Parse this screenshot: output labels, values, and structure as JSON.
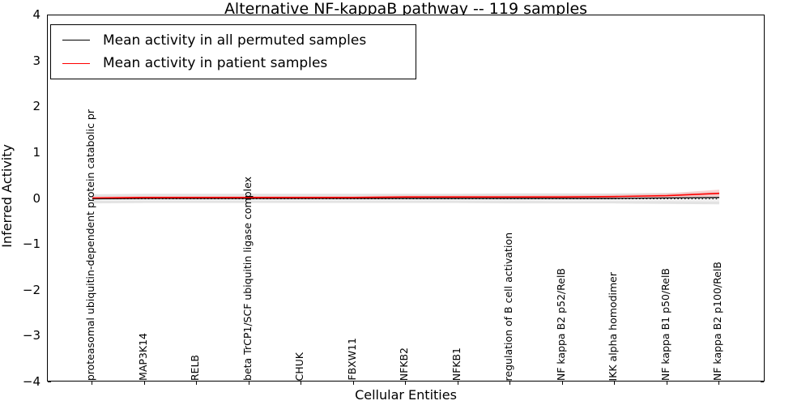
{
  "title": "Alternative NF-kappaB pathway -- 119 samples",
  "axes": {
    "ylabel": "Inferred Activity",
    "xlabel": "Cellular Entities",
    "yticks": [
      "4",
      "3",
      "2",
      "1",
      "0",
      "−1",
      "−2",
      "−3",
      "−4"
    ],
    "ytick_values": [
      4,
      3,
      2,
      1,
      0,
      -1,
      -2,
      -3,
      -4
    ],
    "ylim": [
      -4,
      4
    ]
  },
  "legend": {
    "items": [
      {
        "label": "Mean activity in all permuted samples",
        "color": "#000000"
      },
      {
        "label": "Mean activity in patient samples",
        "color": "#ff0000"
      }
    ]
  },
  "chart_data": {
    "type": "line",
    "title": "Alternative NF-kappaB pathway -- 119 samples",
    "xlabel": "Cellular Entities",
    "ylabel": "Inferred Activity",
    "ylim": [
      -4,
      4
    ],
    "grid": false,
    "legend_position": "upper left",
    "categories": [
      "proteasomal ubiquitin-dependent protein catabolic pr",
      "MAP3K14",
      "RELB",
      "beta TrCP1/SCF ubiquitin ligase complex",
      "CHUK",
      "FBXW11",
      "NFKB2",
      "NFKB1",
      "regulation of B cell activation",
      "NF kappa B2 p52/RelB",
      "IKK alpha homodimer",
      "NF kappa B1 p50/RelB",
      "NF kappa B2 p100/RelB"
    ],
    "series": [
      {
        "name": "Mean activity in all permuted samples",
        "color": "#000000",
        "width": 1.3,
        "values": [
          0.0,
          0.01,
          0.01,
          0.01,
          0.01,
          0.01,
          0.01,
          0.01,
          0.01,
          0.01,
          0.01,
          0.02,
          0.03
        ]
      },
      {
        "name": "Mean activity in patient samples",
        "color": "#ff0000",
        "width": 1.6,
        "values": [
          0.02,
          0.03,
          0.03,
          0.03,
          0.03,
          0.03,
          0.04,
          0.04,
          0.04,
          0.04,
          0.05,
          0.07,
          0.12
        ]
      }
    ],
    "bands": [
      {
        "name": "permuted-std-band",
        "color": "#e3e3e3",
        "opacity": 1,
        "upper": [
          0.1,
          0.11,
          0.11,
          0.11,
          0.11,
          0.11,
          0.11,
          0.11,
          0.12,
          0.12,
          0.12,
          0.13,
          0.15
        ],
        "lower": [
          -0.1,
          -0.09,
          -0.09,
          -0.09,
          -0.09,
          -0.09,
          -0.09,
          -0.09,
          -0.1,
          -0.1,
          -0.1,
          -0.11,
          -0.12
        ]
      },
      {
        "name": "inner-light-band",
        "color": "#f2f1f1",
        "opacity": 1,
        "upper": [
          0.04,
          0.04,
          0.04,
          0.04,
          0.04,
          0.04,
          0.04,
          0.04,
          0.04,
          0.05,
          0.05,
          0.06,
          0.08
        ],
        "lower": [
          -0.04,
          -0.04,
          -0.04,
          -0.04,
          -0.04,
          -0.04,
          -0.04,
          -0.04,
          -0.04,
          -0.05,
          -0.05,
          -0.05,
          -0.06
        ]
      },
      {
        "name": "patient-std-band",
        "color": "#f4bcbc",
        "opacity": 0.65,
        "upper": [
          0.05,
          0.06,
          0.06,
          0.06,
          0.06,
          0.06,
          0.07,
          0.07,
          0.07,
          0.08,
          0.09,
          0.12,
          0.2
        ],
        "lower": [
          -0.01,
          0.0,
          0.0,
          0.0,
          0.0,
          0.0,
          0.01,
          0.01,
          0.01,
          0.01,
          0.02,
          0.03,
          0.05
        ]
      }
    ],
    "zero_line": {
      "style": "dotted",
      "color": "#000000",
      "value": 0
    }
  }
}
